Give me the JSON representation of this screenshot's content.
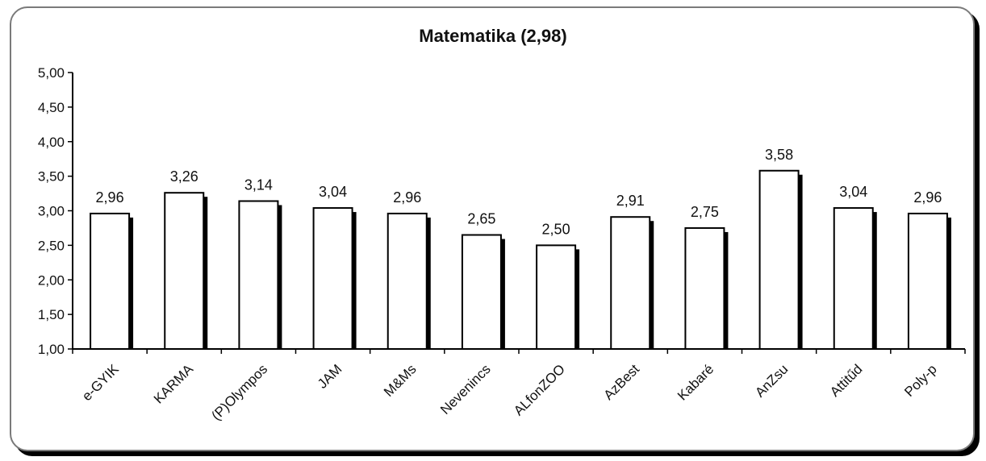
{
  "chart_data": {
    "type": "bar",
    "title": "Matematika (2,98)",
    "categories": [
      "e-GYIK",
      "KARMA",
      "(P)Olympos",
      "JAM",
      "M&Ms",
      "Nevenincs",
      "ALfonZOO",
      "AzBest",
      "Kabaré",
      "AnZsu",
      "Attitűd",
      "Poly-p"
    ],
    "values": [
      2.96,
      3.26,
      3.14,
      3.04,
      2.96,
      2.65,
      2.5,
      2.91,
      2.75,
      3.58,
      3.04,
      2.96
    ],
    "value_labels": [
      "2,96",
      "3,26",
      "3,14",
      "3,04",
      "2,96",
      "2,65",
      "2,50",
      "2,91",
      "2,75",
      "3,58",
      "3,04",
      "2,96"
    ],
    "yticks": [
      1.0,
      1.5,
      2.0,
      2.5,
      3.0,
      3.5,
      4.0,
      4.5,
      5.0
    ],
    "ytick_labels": [
      "1,00",
      "1,50",
      "2,00",
      "2,50",
      "3,00",
      "3,50",
      "4,00",
      "4,50",
      "5,00"
    ],
    "ylim": [
      1.0,
      5.0
    ],
    "xlabel": "",
    "ylabel": "",
    "grid": false,
    "legend": "none",
    "colors": {
      "bar_fill": "#ffffff",
      "bar_stroke": "#000000",
      "bar_shadow": "#000000",
      "axis": "#000000"
    }
  }
}
